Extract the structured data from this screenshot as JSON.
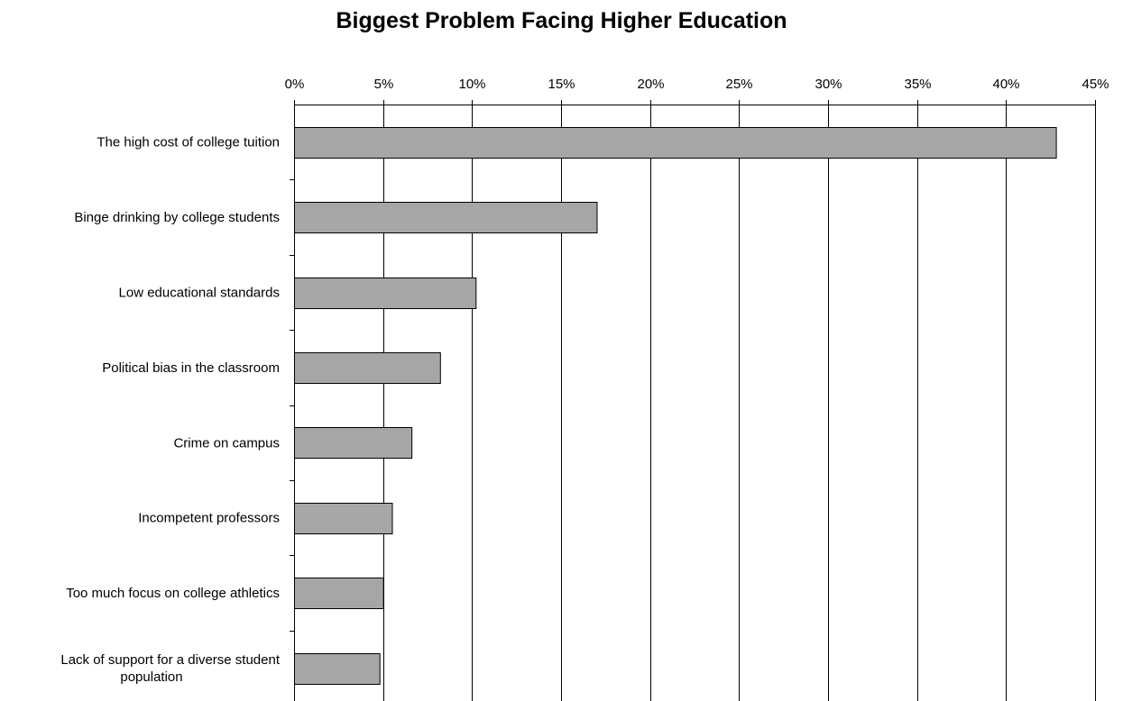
{
  "chart_data": {
    "type": "bar",
    "orientation": "horizontal",
    "title": "Biggest Problem Facing Higher Education",
    "xlabel": "",
    "ylabel": "",
    "xlim": [
      0,
      45
    ],
    "x_ticks": [
      0,
      5,
      10,
      15,
      20,
      25,
      30,
      35,
      40,
      45
    ],
    "x_tick_labels": [
      "0%",
      "5%",
      "10%",
      "15%",
      "20%",
      "25%",
      "30%",
      "35%",
      "40%",
      "45%"
    ],
    "x_axis_position": "top",
    "grid": "vertical",
    "legend": "none",
    "categories": [
      "The high cost of college tuition",
      "Binge drinking by college students",
      "Low educational standards",
      "Political bias in the classroom",
      "Crime on campus",
      "Incompetent professors",
      "Too much focus on college athletics",
      "Lack of support for a diverse student population"
    ],
    "category_label_lines": [
      [
        "The high cost of college tuition"
      ],
      [
        "Binge drinking by college students"
      ],
      [
        "Low educational standards"
      ],
      [
        "Political bias in the classroom"
      ],
      [
        "Crime on campus"
      ],
      [
        "Incompetent professors"
      ],
      [
        "Too much focus on college athletics"
      ],
      [
        "Lack of support for a diverse student",
        "population"
      ]
    ],
    "values": [
      42.8,
      17.0,
      10.2,
      8.2,
      6.6,
      5.5,
      5.0,
      4.8
    ],
    "colors": {
      "bar_fill": "#a6a6a6",
      "bar_stroke": "#000000",
      "gridline": "#000000"
    }
  }
}
